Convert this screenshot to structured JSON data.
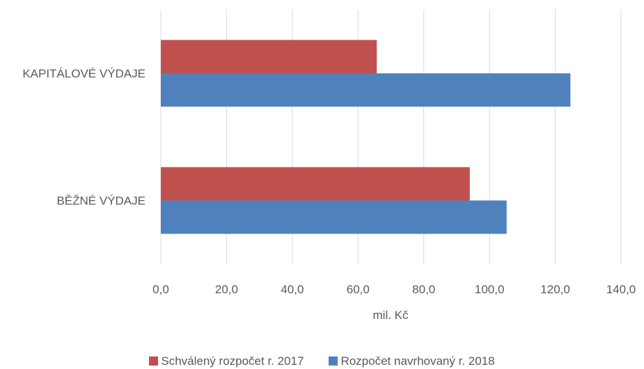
{
  "chart_data": {
    "type": "bar",
    "orientation": "horizontal",
    "categories": [
      "KAPITÁLOVÉ VÝDAJE",
      "BĚŽNÉ VÝDAJE"
    ],
    "series": [
      {
        "name": "Schválený rozpočet r. 2017",
        "color": "#c0504d",
        "values": [
          65.7,
          94.0
        ]
      },
      {
        "name": "Rozpočet navrhovaný r. 2018",
        "color": "#4f81bd",
        "values": [
          124.6,
          105.2
        ]
      }
    ],
    "xlabel": "mil. Kč",
    "ylabel": "",
    "xlim": [
      0,
      140
    ],
    "x_ticks": [
      "0,0",
      "20,0",
      "40,0",
      "60,0",
      "80,0",
      "100,0",
      "120,0",
      "140,0"
    ],
    "grid": true,
    "legend_position": "bottom"
  }
}
